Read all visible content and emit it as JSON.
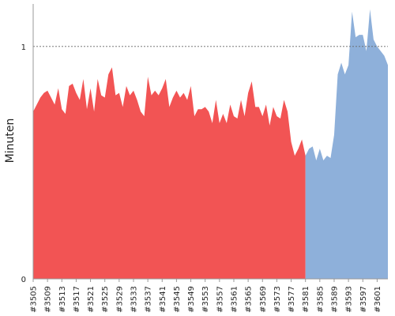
{
  "chart_data": {
    "type": "area",
    "ylabel": "Minuten",
    "xlabel": "",
    "title": "",
    "ylim": [
      0,
      1.2
    ],
    "y_ticks": [
      0,
      1
    ],
    "reference_line": 1,
    "grid": false,
    "x_tick_labels": [
      "#3505",
      "#3509",
      "#3513",
      "#3517",
      "#3521",
      "#3525",
      "#3529",
      "#3533",
      "#3537",
      "#3541",
      "#3545",
      "#3549",
      "#3553",
      "#3557",
      "#3561",
      "#3565",
      "#3569",
      "#3573",
      "#3577",
      "#3581",
      "#3585",
      "#3589",
      "#3593",
      "#3597",
      "#3601"
    ],
    "x_range": [
      3505,
      3604
    ],
    "series": [
      {
        "color": "#f25454",
        "x": [
          3505,
          3506,
          3507,
          3508,
          3509,
          3510,
          3511,
          3512,
          3513,
          3514,
          3515,
          3516,
          3517,
          3518,
          3519,
          3520,
          3521,
          3522,
          3523,
          3524,
          3525,
          3526,
          3527,
          3528,
          3529,
          3530,
          3531,
          3532,
          3533,
          3534,
          3535,
          3536,
          3537,
          3538,
          3539,
          3540,
          3541,
          3542,
          3543,
          3544,
          3545,
          3546,
          3547,
          3548,
          3549,
          3550,
          3551,
          3552,
          3553,
          3554,
          3555,
          3556,
          3557,
          3558,
          3559,
          3560,
          3561,
          3562,
          3563,
          3564,
          3565,
          3566,
          3567,
          3568,
          3569,
          3570,
          3571,
          3572,
          3573,
          3574,
          3575,
          3576,
          3577,
          3578,
          3579,
          3580,
          3581
        ],
        "values": [
          0.72,
          0.75,
          0.78,
          0.8,
          0.81,
          0.78,
          0.75,
          0.82,
          0.73,
          0.71,
          0.83,
          0.84,
          0.8,
          0.77,
          0.86,
          0.73,
          0.82,
          0.72,
          0.86,
          0.79,
          0.78,
          0.88,
          0.91,
          0.79,
          0.8,
          0.74,
          0.83,
          0.79,
          0.81,
          0.77,
          0.72,
          0.7,
          0.87,
          0.79,
          0.81,
          0.79,
          0.82,
          0.86,
          0.74,
          0.78,
          0.81,
          0.78,
          0.8,
          0.77,
          0.83,
          0.7,
          0.73,
          0.73,
          0.74,
          0.72,
          0.67,
          0.77,
          0.67,
          0.71,
          0.67,
          0.75,
          0.7,
          0.69,
          0.77,
          0.7,
          0.8,
          0.85,
          0.74,
          0.74,
          0.7,
          0.75,
          0.66,
          0.74,
          0.7,
          0.69,
          0.77,
          0.72,
          0.59,
          0.53,
          0.56,
          0.6,
          0.53
        ]
      },
      {
        "color": "#8eb0da",
        "x": [
          3581,
          3582,
          3583,
          3584,
          3585,
          3586,
          3587,
          3588,
          3589,
          3590,
          3591,
          3592,
          3593,
          3594,
          3595,
          3596,
          3597,
          3598,
          3599,
          3600,
          3601,
          3602,
          3603,
          3604
        ],
        "values": [
          0.53,
          0.56,
          0.57,
          0.51,
          0.56,
          0.51,
          0.53,
          0.52,
          0.62,
          0.88,
          0.93,
          0.88,
          0.92,
          1.15,
          1.04,
          1.05,
          1.05,
          0.98,
          1.16,
          1.03,
          1.0,
          0.98,
          0.96,
          0.92
        ]
      }
    ]
  }
}
